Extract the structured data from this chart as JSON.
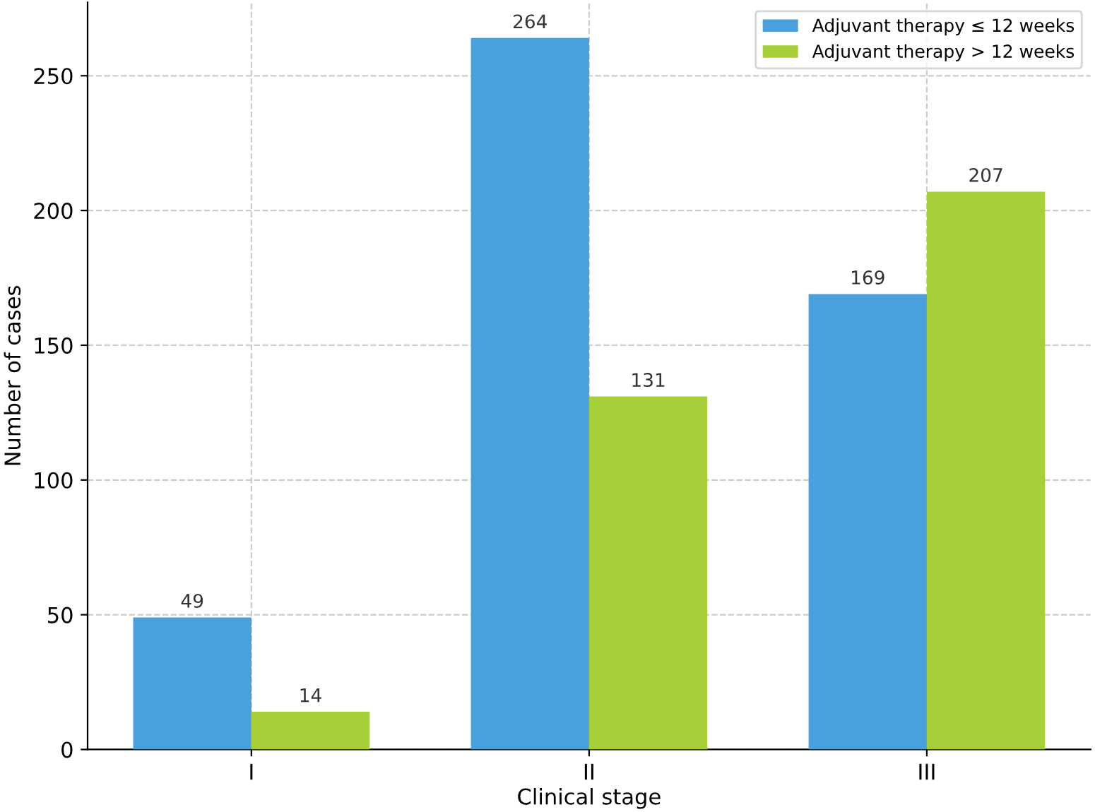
{
  "chart_data": {
    "type": "bar",
    "xlabel": "Clinical stage",
    "ylabel": "Number of cases",
    "categories": [
      "I",
      "II",
      "III"
    ],
    "series": [
      {
        "name": "Adjuvant therapy ≤ 12 weeks",
        "color": "#4a9fdd",
        "values": [
          49,
          264,
          169
        ]
      },
      {
        "name": "Adjuvant therapy > 12 weeks",
        "color": "#a6cf38",
        "values": [
          14,
          131,
          207
        ]
      }
    ],
    "ylim": [
      0,
      277.2
    ],
    "yticks": [
      0,
      50,
      100,
      150,
      200,
      250
    ],
    "grid": true,
    "legend": "top right",
    "data_labels": true
  }
}
